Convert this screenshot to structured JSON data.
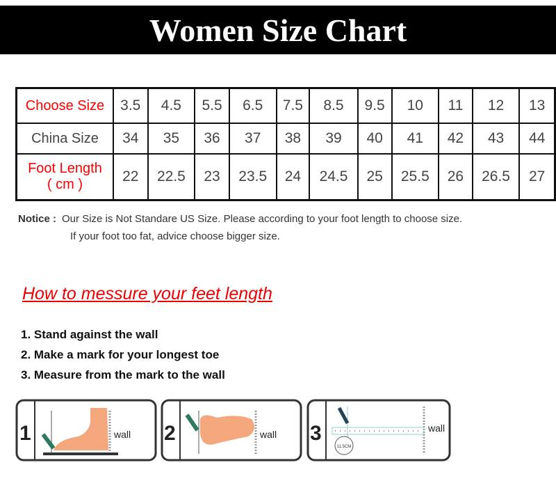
{
  "title": "Women Size Chart",
  "table": {
    "row_labels": {
      "choose": "Choose Size",
      "china": "China Size",
      "foot": "Foot Length",
      "foot_unit": "( cm )"
    },
    "choose_size": [
      "3.5",
      "4.5",
      "5.5",
      "6.5",
      "7.5",
      "8.5",
      "9.5",
      "10",
      "11",
      "12",
      "13"
    ],
    "china_size": [
      "34",
      "35",
      "36",
      "37",
      "38",
      "39",
      "40",
      "41",
      "42",
      "43",
      "44"
    ],
    "foot_length": [
      "22",
      "22.5",
      "23",
      "23.5",
      "24",
      "24.5",
      "25",
      "25.5",
      "26",
      "26.5",
      "27"
    ]
  },
  "notice": {
    "label": "Notice :",
    "line1": "Our Size is Not Standare US Size. Please according to your foot length to choose size.",
    "line2": "If your foot too fat, advice choose bigger size."
  },
  "howto": {
    "title": "How to messure your feet length",
    "steps": [
      "1.  Stand against the wall",
      "2.  Make a mark for your longest toe",
      "3.  Measure from the mark to the wall"
    ]
  },
  "illustrations": [
    {
      "number": "1",
      "label": "wall"
    },
    {
      "number": "2",
      "label": "wall"
    },
    {
      "number": "3",
      "label": "wall",
      "measure": "11.5CM"
    }
  ],
  "colors": {
    "accent": "#ff0000",
    "banner": "#000000",
    "foot": "#f4a77c",
    "pencil": "#2e7a5f"
  }
}
